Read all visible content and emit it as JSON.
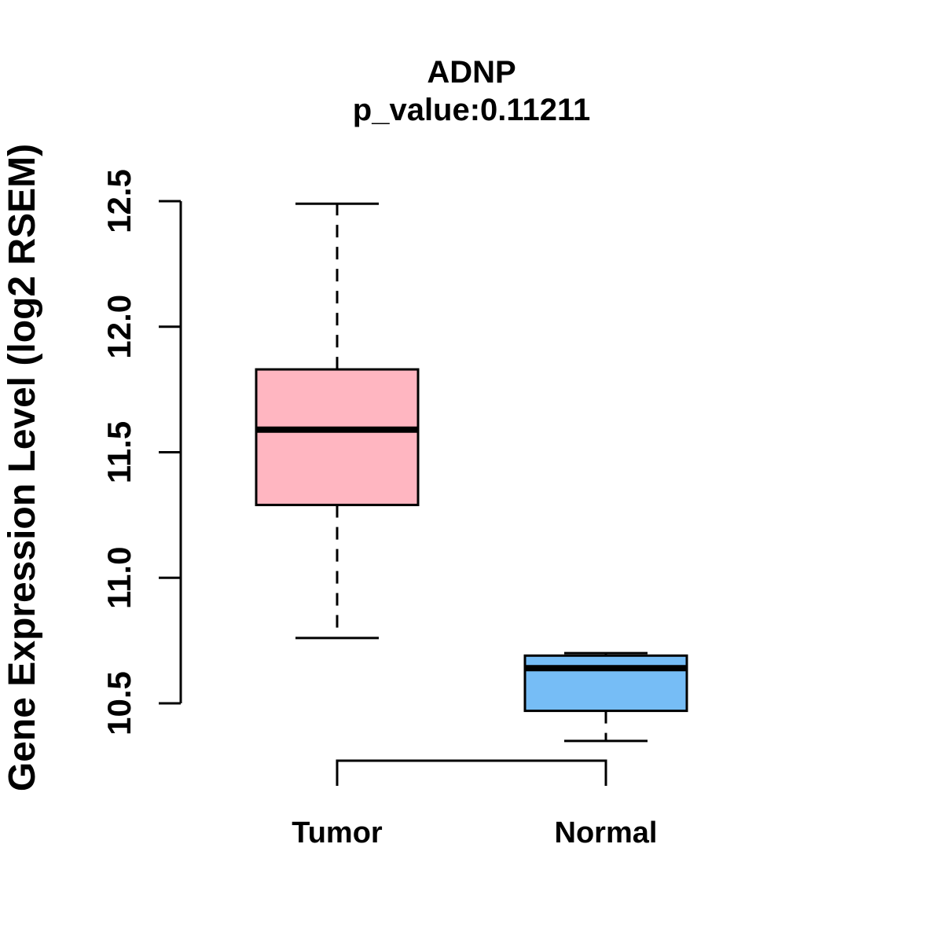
{
  "chart_data": {
    "type": "boxplot",
    "title": "ADNP",
    "subtitle": "p_value:0.11211",
    "ylabel": "Gene Expression Level (log2 RSEM)",
    "xlabel": "",
    "ylim": [
      10.5,
      12.5
    ],
    "ytick_labels": [
      "10.5",
      "11.0",
      "11.5",
      "12.0",
      "12.5"
    ],
    "grid": "off",
    "legend": "none",
    "categories": [
      "Tumor",
      "Normal"
    ],
    "series": [
      {
        "name": "Tumor",
        "color": "#FFB6C1",
        "whisker_low": 10.76,
        "q1": 11.29,
        "median": 11.59,
        "q3": 11.83,
        "whisker_high": 12.49
      },
      {
        "name": "Normal",
        "color": "#76BDF6",
        "whisker_low": 10.35,
        "q1": 10.47,
        "median": 10.64,
        "q3": 10.69,
        "whisker_high": 10.7
      }
    ],
    "annotations": {
      "group_bracket": "bracket connecting Tumor and Normal below plot"
    }
  }
}
